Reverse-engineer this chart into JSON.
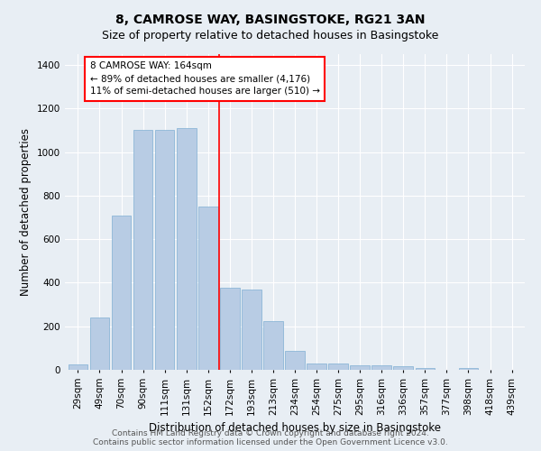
{
  "title": "8, CAMROSE WAY, BASINGSTOKE, RG21 3AN",
  "subtitle": "Size of property relative to detached houses in Basingstoke",
  "xlabel": "Distribution of detached houses by size in Basingstoke",
  "ylabel": "Number of detached properties",
  "categories": [
    "29sqm",
    "49sqm",
    "70sqm",
    "90sqm",
    "111sqm",
    "131sqm",
    "152sqm",
    "172sqm",
    "193sqm",
    "213sqm",
    "234sqm",
    "254sqm",
    "275sqm",
    "295sqm",
    "316sqm",
    "336sqm",
    "357sqm",
    "377sqm",
    "398sqm",
    "418sqm",
    "439sqm"
  ],
  "values": [
    25,
    240,
    710,
    1100,
    1100,
    1110,
    750,
    375,
    370,
    225,
    85,
    30,
    30,
    20,
    20,
    15,
    10,
    0,
    10,
    0,
    0
  ],
  "bar_color": "#b8cce4",
  "bar_edge_color": "#7fafd4",
  "vline_color": "red",
  "vline_pos": 6.5,
  "annotation_text": "8 CAMROSE WAY: 164sqm\n← 89% of detached houses are smaller (4,176)\n11% of semi-detached houses are larger (510) →",
  "annotation_box_color": "white",
  "annotation_box_edge": "red",
  "ylim": [
    0,
    1450
  ],
  "yticks": [
    0,
    200,
    400,
    600,
    800,
    1000,
    1200,
    1400
  ],
  "background_color": "#e8eef4",
  "grid_color": "white",
  "footer_line1": "Contains HM Land Registry data © Crown copyright and database right 2024.",
  "footer_line2": "Contains public sector information licensed under the Open Government Licence v3.0.",
  "title_fontsize": 10,
  "subtitle_fontsize": 9,
  "axis_label_fontsize": 8.5,
  "tick_fontsize": 7.5,
  "annotation_fontsize": 7.5,
  "footer_fontsize": 6.5
}
